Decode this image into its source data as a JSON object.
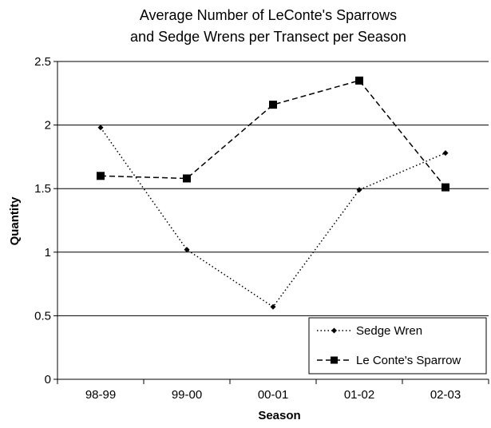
{
  "chart_data": {
    "type": "line",
    "title": "Average Number of LeConte's Sparrows and Sedge Wrens per Transect per Season",
    "title_lines": [
      "Average Number of LeConte's Sparrows",
      "and Sedge Wrens per Transect per Season"
    ],
    "xlabel": "Season",
    "ylabel": "Quantity",
    "categories": [
      "98-99",
      "99-00",
      "00-01",
      "01-02",
      "02-03"
    ],
    "ylim": [
      0,
      2.5
    ],
    "yticks": [
      0,
      0.5,
      1,
      1.5,
      2,
      2.5
    ],
    "ytick_labels": [
      "0",
      "0.5",
      "1",
      "1.5",
      "2",
      "2.5"
    ],
    "grid": "horizontal",
    "legend_position": "bottom-right",
    "series": [
      {
        "name": "Sedge Wren",
        "values": [
          1.98,
          1.02,
          0.57,
          1.49,
          1.78
        ],
        "marker": "diamond",
        "line_style": "dotted",
        "color": "#000000"
      },
      {
        "name": "Le Conte's Sparrow",
        "values": [
          1.6,
          1.58,
          2.16,
          2.35,
          1.51
        ],
        "marker": "square",
        "line_style": "dashed",
        "color": "#000000"
      }
    ]
  }
}
